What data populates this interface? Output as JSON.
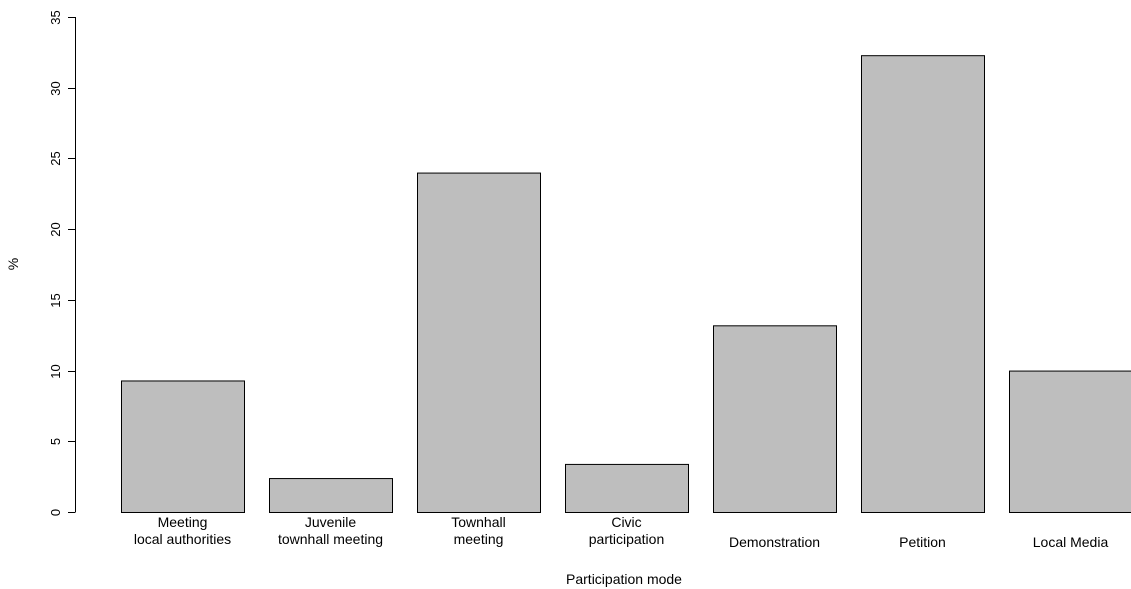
{
  "chart_data": {
    "type": "bar",
    "categories": [
      [
        "Meeting",
        "local authorities"
      ],
      [
        "Juvenile",
        "townhall meeting"
      ],
      [
        "Townhall",
        "meeting"
      ],
      [
        "Civic",
        "participation"
      ],
      [
        "Demonstration"
      ],
      [
        "Petition"
      ],
      [
        "Local Media"
      ]
    ],
    "values": [
      9.3,
      2.4,
      24.0,
      3.4,
      13.2,
      32.3,
      10.0
    ],
    "xlabel": "Participation mode",
    "ylabel": "%",
    "ylim": [
      0,
      35
    ],
    "yticks": [
      0,
      5,
      10,
      15,
      20,
      25,
      30,
      35
    ],
    "grid": false,
    "legend": "none",
    "colors": {
      "bar_fill": "#bebebe",
      "bar_stroke": "#000000",
      "axis": "#000000"
    }
  }
}
